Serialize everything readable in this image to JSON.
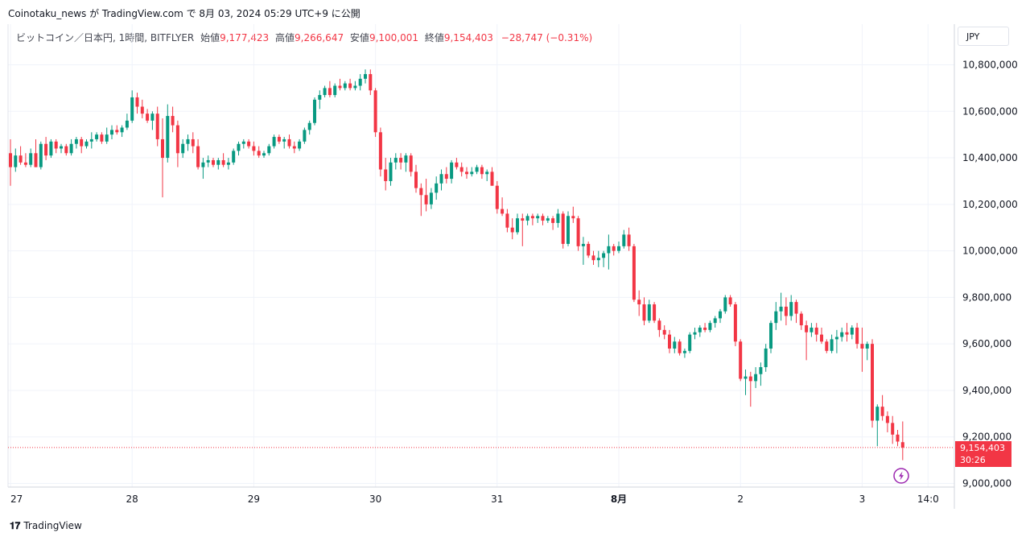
{
  "header": {
    "attribution": "Coinotaku_news が TradingView.com で 8月 03, 2024 05:29 UTC+9 に公開"
  },
  "legend": {
    "symbol": "ビットコイン／日本円, 1時間, BITFLYER",
    "open_label": "始値",
    "open": "9,177,423",
    "high_label": "高値",
    "high": "9,266,647",
    "low_label": "安値",
    "low": "9,100,001",
    "close_label": "終値",
    "close": "9,154,403",
    "change": "−28,747 (−0.31%)"
  },
  "toolbar": {
    "currency": "JPY"
  },
  "last_price": {
    "price": "9,154,403",
    "countdown": "30:26"
  },
  "footer": {
    "brand": "TradingView"
  },
  "colors": {
    "up": "#089981",
    "down": "#f23645",
    "grid": "#f0f3fa",
    "text": "#131722"
  },
  "chart_data": {
    "type": "candlestick",
    "currency": "JPY",
    "y_range": [
      8980000,
      10900000
    ],
    "y_ticks": [
      9000000,
      9200000,
      9400000,
      9600000,
      9800000,
      10000000,
      10200000,
      10400000,
      10600000,
      10800000
    ],
    "y_tick_labels": [
      "9,000,000",
      "9,200,000",
      "9,400,000",
      "9,600,000",
      "9,800,000",
      "10,000,000",
      "10,200,000",
      "10,400,000",
      "10,600,000",
      "10,800,000"
    ],
    "x_ticks": [
      {
        "index": 0,
        "label": "27"
      },
      {
        "index": 24,
        "label": "28"
      },
      {
        "index": 48,
        "label": "29"
      },
      {
        "index": 72,
        "label": "30"
      },
      {
        "index": 96,
        "label": "31"
      },
      {
        "index": 120,
        "label": "8月"
      },
      {
        "index": 144,
        "label": "2"
      },
      {
        "index": 168,
        "label": "3"
      },
      {
        "index": 181,
        "label": "14:0"
      }
    ],
    "last_close": 9154403,
    "candles": [
      [
        10420000,
        10480000,
        10280000,
        10360000
      ],
      [
        10360000,
        10440000,
        10340000,
        10410000
      ],
      [
        10410000,
        10450000,
        10370000,
        10380000
      ],
      [
        10380000,
        10420000,
        10360000,
        10370000
      ],
      [
        10370000,
        10440000,
        10360000,
        10420000
      ],
      [
        10420000,
        10480000,
        10360000,
        10360000
      ],
      [
        10360000,
        10470000,
        10350000,
        10460000
      ],
      [
        10460000,
        10490000,
        10390000,
        10410000
      ],
      [
        10410000,
        10480000,
        10400000,
        10470000
      ],
      [
        10470000,
        10480000,
        10420000,
        10440000
      ],
      [
        10440000,
        10460000,
        10420000,
        10450000
      ],
      [
        10450000,
        10460000,
        10410000,
        10420000
      ],
      [
        10420000,
        10480000,
        10410000,
        10460000
      ],
      [
        10460000,
        10490000,
        10440000,
        10480000
      ],
      [
        10480000,
        10490000,
        10420000,
        10450000
      ],
      [
        10450000,
        10480000,
        10440000,
        10470000
      ],
      [
        10470000,
        10510000,
        10440000,
        10480000
      ],
      [
        10480000,
        10510000,
        10470000,
        10500000
      ],
      [
        10500000,
        10510000,
        10460000,
        10470000
      ],
      [
        10470000,
        10530000,
        10460000,
        10500000
      ],
      [
        10500000,
        10540000,
        10480000,
        10520000
      ],
      [
        10520000,
        10540000,
        10500000,
        10510000
      ],
      [
        10510000,
        10540000,
        10490000,
        10530000
      ],
      [
        10530000,
        10590000,
        10520000,
        10560000
      ],
      [
        10560000,
        10690000,
        10550000,
        10660000
      ],
      [
        10660000,
        10680000,
        10590000,
        10620000
      ],
      [
        10620000,
        10650000,
        10570000,
        10590000
      ],
      [
        10590000,
        10610000,
        10550000,
        10560000
      ],
      [
        10560000,
        10600000,
        10520000,
        10590000
      ],
      [
        10590000,
        10620000,
        10450000,
        10480000
      ],
      [
        10480000,
        10570000,
        10230000,
        10400000
      ],
      [
        10400000,
        10630000,
        10380000,
        10580000
      ],
      [
        10580000,
        10620000,
        10510000,
        10540000
      ],
      [
        10540000,
        10560000,
        10360000,
        10420000
      ],
      [
        10420000,
        10480000,
        10400000,
        10460000
      ],
      [
        10460000,
        10500000,
        10430000,
        10480000
      ],
      [
        10480000,
        10510000,
        10420000,
        10450000
      ],
      [
        10450000,
        10480000,
        10350000,
        10360000
      ],
      [
        10360000,
        10400000,
        10310000,
        10380000
      ],
      [
        10380000,
        10410000,
        10360000,
        10390000
      ],
      [
        10390000,
        10400000,
        10360000,
        10370000
      ],
      [
        10370000,
        10400000,
        10350000,
        10390000
      ],
      [
        10390000,
        10420000,
        10360000,
        10370000
      ],
      [
        10370000,
        10400000,
        10350000,
        10380000
      ],
      [
        10380000,
        10440000,
        10370000,
        10430000
      ],
      [
        10430000,
        10470000,
        10410000,
        10460000
      ],
      [
        10460000,
        10480000,
        10440000,
        10470000
      ],
      [
        10470000,
        10480000,
        10440000,
        10450000
      ],
      [
        10450000,
        10470000,
        10410000,
        10430000
      ],
      [
        10430000,
        10450000,
        10400000,
        10410000
      ],
      [
        10410000,
        10430000,
        10400000,
        10420000
      ],
      [
        10420000,
        10460000,
        10410000,
        10450000
      ],
      [
        10450000,
        10500000,
        10440000,
        10490000
      ],
      [
        10490000,
        10500000,
        10460000,
        10470000
      ],
      [
        10470000,
        10490000,
        10440000,
        10480000
      ],
      [
        10480000,
        10500000,
        10440000,
        10450000
      ],
      [
        10450000,
        10470000,
        10420000,
        10440000
      ],
      [
        10440000,
        10480000,
        10430000,
        10470000
      ],
      [
        10470000,
        10530000,
        10460000,
        10520000
      ],
      [
        10520000,
        10560000,
        10500000,
        10550000
      ],
      [
        10550000,
        10660000,
        10540000,
        10650000
      ],
      [
        10650000,
        10690000,
        10610000,
        10670000
      ],
      [
        10670000,
        10710000,
        10660000,
        10700000
      ],
      [
        10700000,
        10730000,
        10660000,
        10670000
      ],
      [
        10670000,
        10720000,
        10660000,
        10710000
      ],
      [
        10710000,
        10740000,
        10690000,
        10700000
      ],
      [
        10700000,
        10730000,
        10690000,
        10720000
      ],
      [
        10720000,
        10740000,
        10690000,
        10700000
      ],
      [
        10700000,
        10730000,
        10690000,
        10710000
      ],
      [
        10710000,
        10760000,
        10690000,
        10740000
      ],
      [
        10740000,
        10780000,
        10720000,
        10760000
      ],
      [
        10760000,
        10780000,
        10670000,
        10690000
      ],
      [
        10690000,
        10700000,
        10490000,
        10510000
      ],
      [
        10510000,
        10530000,
        10320000,
        10350000
      ],
      [
        10350000,
        10400000,
        10260000,
        10300000
      ],
      [
        10300000,
        10400000,
        10280000,
        10380000
      ],
      [
        10380000,
        10420000,
        10350000,
        10400000
      ],
      [
        10400000,
        10420000,
        10350000,
        10380000
      ],
      [
        10380000,
        10420000,
        10340000,
        10410000
      ],
      [
        10410000,
        10420000,
        10320000,
        10340000
      ],
      [
        10340000,
        10370000,
        10250000,
        10270000
      ],
      [
        10270000,
        10290000,
        10150000,
        10240000
      ],
      [
        10240000,
        10310000,
        10170000,
        10200000
      ],
      [
        10200000,
        10270000,
        10180000,
        10250000
      ],
      [
        10250000,
        10320000,
        10220000,
        10290000
      ],
      [
        10290000,
        10350000,
        10260000,
        10330000
      ],
      [
        10330000,
        10360000,
        10290000,
        10310000
      ],
      [
        10310000,
        10390000,
        10290000,
        10380000
      ],
      [
        10380000,
        10400000,
        10350000,
        10360000
      ],
      [
        10360000,
        10380000,
        10320000,
        10340000
      ],
      [
        10340000,
        10360000,
        10310000,
        10330000
      ],
      [
        10330000,
        10360000,
        10320000,
        10340000
      ],
      [
        10340000,
        10370000,
        10330000,
        10360000
      ],
      [
        10360000,
        10370000,
        10310000,
        10330000
      ],
      [
        10330000,
        10350000,
        10300000,
        10340000
      ],
      [
        10340000,
        10360000,
        10280000,
        10280000
      ],
      [
        10280000,
        10300000,
        10160000,
        10180000
      ],
      [
        10180000,
        10230000,
        10150000,
        10160000
      ],
      [
        10160000,
        10180000,
        10080000,
        10100000
      ],
      [
        10100000,
        10140000,
        10050000,
        10080000
      ],
      [
        10080000,
        10160000,
        10070000,
        10140000
      ],
      [
        10140000,
        10160000,
        10020000,
        10130000
      ],
      [
        10130000,
        10160000,
        10110000,
        10150000
      ],
      [
        10150000,
        10160000,
        10110000,
        10140000
      ],
      [
        10140000,
        10160000,
        10120000,
        10150000
      ],
      [
        10150000,
        10160000,
        10110000,
        10130000
      ],
      [
        10130000,
        10150000,
        10120000,
        10140000
      ],
      [
        10140000,
        10150000,
        10090000,
        10120000
      ],
      [
        10120000,
        10180000,
        10100000,
        10160000
      ],
      [
        10160000,
        10170000,
        10010000,
        10030000
      ],
      [
        10030000,
        10170000,
        10020000,
        10150000
      ],
      [
        10150000,
        10190000,
        10120000,
        10140000
      ],
      [
        10140000,
        10150000,
        10000000,
        10020000
      ],
      [
        10020000,
        10060000,
        9940000,
        10030000
      ],
      [
        10030000,
        10040000,
        9970000,
        9980000
      ],
      [
        9980000,
        10000000,
        9940000,
        9960000
      ],
      [
        9960000,
        10000000,
        9930000,
        9970000
      ],
      [
        9970000,
        10000000,
        9930000,
        9990000
      ],
      [
        9990000,
        10070000,
        9920000,
        10020000
      ],
      [
        10020000,
        10030000,
        9980000,
        10000000
      ],
      [
        10000000,
        10040000,
        9990000,
        10020000
      ],
      [
        10020000,
        10090000,
        10010000,
        10070000
      ],
      [
        10070000,
        10100000,
        10000000,
        10020000
      ],
      [
        10020000,
        10030000,
        9780000,
        9790000
      ],
      [
        9790000,
        9830000,
        9720000,
        9770000
      ],
      [
        9770000,
        9800000,
        9680000,
        9700000
      ],
      [
        9700000,
        9790000,
        9690000,
        9770000
      ],
      [
        9770000,
        9780000,
        9690000,
        9700000
      ],
      [
        9700000,
        9710000,
        9630000,
        9660000
      ],
      [
        9660000,
        9680000,
        9620000,
        9640000
      ],
      [
        9640000,
        9660000,
        9560000,
        9580000
      ],
      [
        9580000,
        9630000,
        9560000,
        9610000
      ],
      [
        9610000,
        9620000,
        9550000,
        9560000
      ],
      [
        9560000,
        9580000,
        9540000,
        9570000
      ],
      [
        9570000,
        9650000,
        9560000,
        9640000
      ],
      [
        9640000,
        9670000,
        9620000,
        9650000
      ],
      [
        9650000,
        9680000,
        9630000,
        9670000
      ],
      [
        9670000,
        9690000,
        9650000,
        9660000
      ],
      [
        9660000,
        9700000,
        9650000,
        9690000
      ],
      [
        9690000,
        9720000,
        9670000,
        9710000
      ],
      [
        9710000,
        9750000,
        9690000,
        9740000
      ],
      [
        9740000,
        9810000,
        9730000,
        9800000
      ],
      [
        9800000,
        9810000,
        9760000,
        9770000
      ],
      [
        9770000,
        9780000,
        9590000,
        9610000
      ],
      [
        9610000,
        9620000,
        9440000,
        9450000
      ],
      [
        9450000,
        9490000,
        9380000,
        9460000
      ],
      [
        9460000,
        9480000,
        9330000,
        9440000
      ],
      [
        9440000,
        9500000,
        9410000,
        9470000
      ],
      [
        9470000,
        9520000,
        9420000,
        9500000
      ],
      [
        9500000,
        9600000,
        9480000,
        9580000
      ],
      [
        9580000,
        9700000,
        9560000,
        9690000
      ],
      [
        9690000,
        9780000,
        9660000,
        9740000
      ],
      [
        9740000,
        9820000,
        9700000,
        9760000
      ],
      [
        9760000,
        9800000,
        9680000,
        9720000
      ],
      [
        9720000,
        9810000,
        9700000,
        9780000
      ],
      [
        9780000,
        9790000,
        9690000,
        9730000
      ],
      [
        9730000,
        9740000,
        9660000,
        9680000
      ],
      [
        9680000,
        9700000,
        9530000,
        9650000
      ],
      [
        9650000,
        9690000,
        9630000,
        9670000
      ],
      [
        9670000,
        9690000,
        9610000,
        9640000
      ],
      [
        9640000,
        9670000,
        9600000,
        9610000
      ],
      [
        9610000,
        9620000,
        9560000,
        9570000
      ],
      [
        9570000,
        9640000,
        9560000,
        9620000
      ],
      [
        9620000,
        9660000,
        9560000,
        9630000
      ],
      [
        9630000,
        9670000,
        9610000,
        9650000
      ],
      [
        9650000,
        9690000,
        9610000,
        9640000
      ],
      [
        9640000,
        9680000,
        9620000,
        9670000
      ],
      [
        9670000,
        9690000,
        9580000,
        9600000
      ],
      [
        9600000,
        9670000,
        9480000,
        9580000
      ],
      [
        9580000,
        9610000,
        9530000,
        9600000
      ],
      [
        9600000,
        9620000,
        9240000,
        9270000
      ],
      [
        9270000,
        9340000,
        9160000,
        9330000
      ],
      [
        9330000,
        9380000,
        9270000,
        9290000
      ],
      [
        9290000,
        9310000,
        9220000,
        9260000
      ],
      [
        9260000,
        9290000,
        9170000,
        9210000
      ],
      [
        9210000,
        9230000,
        9160000,
        9180000
      ],
      [
        9177423,
        9266647,
        9100001,
        9154403
      ]
    ]
  }
}
